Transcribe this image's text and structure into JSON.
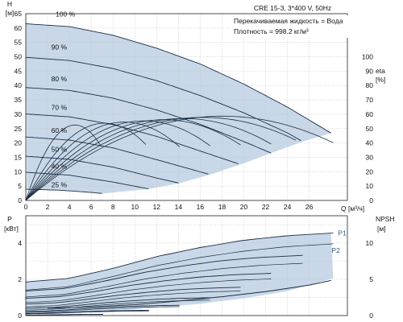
{
  "chart_data": [
    {
      "type": "line",
      "panel": "head-efficiency",
      "title": "CRE 15-3, 3*400 V, 50Hz",
      "annotations": [
        "Перекачиваемая жидкость = Вода",
        "Плотность = 998.2 кг/м³"
      ],
      "ylabel_left": [
        "H",
        "[м]"
      ],
      "ylabel_right": [
        "eta",
        "[%]"
      ],
      "xlabel": "Q [м³/ч]",
      "x_ticks": [
        0,
        2,
        4,
        6,
        8,
        10,
        12,
        14,
        16,
        18,
        20,
        22,
        24,
        26
      ],
      "xlim": [
        0,
        29.5
      ],
      "y_left_ticks": [
        0,
        5,
        10,
        15,
        20,
        25,
        30,
        35,
        40,
        45,
        50,
        55,
        60,
        65
      ],
      "ylim_left": [
        0,
        65
      ],
      "y_right_ticks": [
        0,
        10,
        20,
        30,
        40,
        50,
        60,
        70,
        80,
        90,
        100
      ],
      "ylim_right": [
        0,
        130
      ],
      "operating_area_color": "#c8d8e8",
      "curve_color": "#1c2e44",
      "series": [
        {
          "name": "100 %",
          "speed": 1.0,
          "x": [
            0,
            4,
            8,
            12,
            16,
            20,
            24,
            28.2
          ],
          "y": [
            61.5,
            60.5,
            57.5,
            53,
            47.5,
            40.5,
            32.5,
            23
          ]
        },
        {
          "name": "90 %",
          "speed": 0.9,
          "x": [
            0,
            4,
            8,
            12,
            16,
            20,
            24,
            25.4
          ],
          "y": [
            49.8,
            48.7,
            45.9,
            41.7,
            36.5,
            30.5,
            23.5,
            20.5
          ]
        },
        {
          "name": "80 %",
          "speed": 0.8,
          "x": [
            0,
            4,
            8,
            12,
            16,
            20,
            22.5
          ],
          "y": [
            39.3,
            38.3,
            35.6,
            31.5,
            26.5,
            20.5,
            16.5
          ]
        },
        {
          "name": "70 %",
          "speed": 0.7,
          "x": [
            0,
            4,
            8,
            12,
            16,
            19.7
          ],
          "y": [
            30.1,
            29.1,
            26.4,
            22.3,
            17.2,
            12.5
          ]
        },
        {
          "name": "60 %",
          "speed": 0.6,
          "x": [
            0,
            4,
            8,
            12,
            16.9
          ],
          "y": [
            22.1,
            21,
            18.3,
            14.2,
            9
          ]
        },
        {
          "name": "50 %",
          "speed": 0.5,
          "x": [
            0,
            4,
            8,
            12,
            14.1
          ],
          "y": [
            15.4,
            14.3,
            11.6,
            7.8,
            6
          ]
        },
        {
          "name": "40 %",
          "speed": 0.4,
          "x": [
            0,
            4,
            8,
            11.3
          ],
          "y": [
            9.8,
            8.8,
            6.4,
            4
          ]
        },
        {
          "name": "25 %",
          "speed": 0.25,
          "x": [
            0,
            3,
            6,
            7.1
          ],
          "y": [
            3.9,
            3.6,
            2.8,
            2.4
          ]
        }
      ]
    },
    {
      "type": "line",
      "panel": "power-npsh",
      "ylabel_left": [
        "P",
        "[кВт]"
      ],
      "ylabel_right": [
        "NPSH",
        "[м]"
      ],
      "x_ticks": [
        0,
        2,
        4,
        6,
        8,
        10,
        12,
        14,
        16,
        18,
        20,
        22,
        24,
        26
      ],
      "xlim": [
        0,
        29.5
      ],
      "y_left_ticks": [
        0,
        2,
        4
      ],
      "ylim_left": [
        0,
        5.5
      ],
      "y_right_ticks": [
        0,
        5,
        10
      ],
      "ylim_right": [
        0,
        13.75
      ],
      "series": [
        {
          "name": "P1",
          "x": [
            0,
            4,
            8,
            12,
            16,
            20,
            24,
            28.2
          ],
          "y": [
            1.85,
            2.05,
            2.6,
            3.25,
            3.75,
            4.15,
            4.4,
            4.55
          ]
        },
        {
          "name": "P2",
          "x": [
            0,
            4,
            8,
            12,
            16,
            20,
            24,
            28.2
          ],
          "y": [
            1.4,
            1.6,
            2.15,
            2.75,
            3.2,
            3.55,
            3.8,
            3.95
          ]
        },
        {
          "name": "NPSH",
          "x": [
            2,
            6,
            10,
            14,
            18,
            22,
            26,
            28.2
          ],
          "y": [
            1.0,
            1.2,
            1.5,
            2.0,
            2.6,
            3.3,
            4.2,
            4.9
          ]
        }
      ]
    }
  ]
}
